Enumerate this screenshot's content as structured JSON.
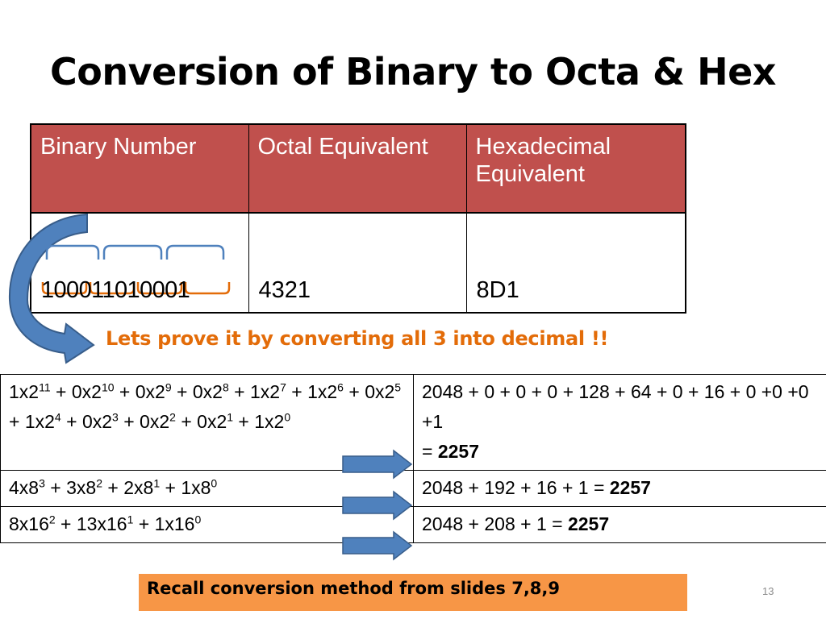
{
  "slide": {
    "title": "Conversion of Binary to Octa & Hex",
    "page_number": "13"
  },
  "conversion_table": {
    "headers": [
      "Binary Number",
      "Octal Equivalent",
      "Hexadecimal Equivalent"
    ],
    "row": [
      "100011010001",
      "4321",
      "8D1"
    ]
  },
  "prove_text": "Lets prove it by converting all 3 into decimal !!",
  "proof_table": {
    "binary_expansion": [
      {
        "base": "1x2",
        "exp": "11",
        "after": " + "
      },
      {
        "base": "0x2",
        "exp": "10",
        "after": " + "
      },
      {
        "base": "0x2",
        "exp": "9",
        "after": " + "
      },
      {
        "base": "0x2",
        "exp": "8",
        "after": " + "
      },
      {
        "base": "1x2",
        "exp": "7",
        "after": " + "
      },
      {
        "base": "1x2",
        "exp": "6",
        "after": " + "
      },
      {
        "base": "0x2",
        "exp": "5",
        "after": " + "
      },
      {
        "base": "1x2",
        "exp": "4",
        "after": " + "
      },
      {
        "base": "0x2",
        "exp": "3",
        "after": " + "
      },
      {
        "base": "0x2",
        "exp": "2",
        "after": " + "
      },
      {
        "base": "0x2",
        "exp": "1",
        "after": " + "
      },
      {
        "base": "1x2",
        "exp": "0",
        "after": ""
      }
    ],
    "binary_result_line": "2048 + 0 + 0 + 0 + 128 + 64 + 0 + 16 + 0 +0 +0 +1",
    "binary_result_prefix": "= ",
    "octal_expansion": [
      {
        "base": "4x8",
        "exp": "3",
        "after": " + "
      },
      {
        "base": "3x8",
        "exp": "2",
        "after": " + "
      },
      {
        "base": "2x8",
        "exp": "1",
        "after": " + "
      },
      {
        "base": "1x8",
        "exp": "0",
        "after": ""
      }
    ],
    "octal_result_prefix": "2048 + 192 + 16 + 1 = ",
    "hex_expansion": [
      {
        "base": "8x16",
        "exp": "2",
        "after": " + "
      },
      {
        "base": "13x16",
        "exp": "1",
        "after": " + "
      },
      {
        "base": "1x16",
        "exp": "0",
        "after": ""
      }
    ],
    "hex_result_prefix": "2048 + 208 + 1 = ",
    "decimal_result": "2257"
  },
  "recall_note": "Recall conversion method from slides 7,8,9",
  "colors": {
    "header_fill": "#c0504d",
    "prove_text": "#e36c09",
    "recall_fill": "#f79646",
    "arrow_fill": "#4f81bd",
    "upper_brackets": "#4f81bd",
    "lower_brackets": "#e36c09"
  },
  "icons": [
    "curved-arrow-icon",
    "right-arrow-icon"
  ]
}
